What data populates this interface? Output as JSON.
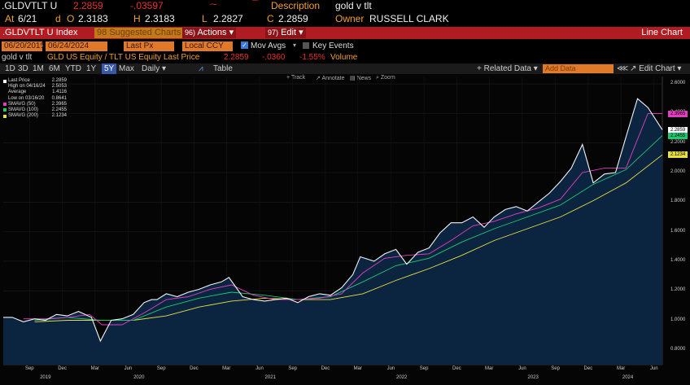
{
  "header": {
    "ticker": ".GLDVTLT U",
    "last_price": "2.2859",
    "change": "-.03597",
    "desc_label": "Description",
    "desc_value": "gold v tlt",
    "at_label": "At",
    "date": "6/21",
    "d_label": "d",
    "o_label": "O",
    "open": "2.3183",
    "h_label": "H",
    "high": "2.3183",
    "l_label": "L",
    "low": "2.2827",
    "c_label": "C",
    "close": "2.2859",
    "owner_label": "Owner",
    "owner": "RUSSELL CLARK"
  },
  "titlebar": {
    "index_label": ".GLDVTLT U Index",
    "suggested": "Suggested Charts",
    "suggested_num": "98",
    "actions_num": "96)",
    "actions": "Actions",
    "edit_num": "97)",
    "edit": "Edit",
    "right_title": "Line Chart"
  },
  "controls": {
    "start_date": "06/20/2019",
    "end_date": "06/24/2024",
    "field": "Last Px",
    "currency": "Local CCY",
    "mov_avgs": "Mov Avgs",
    "key_events": "Key Events"
  },
  "series_line": {
    "name": "gold v tlt",
    "formula": "GLD US Equity / TLT US Equity Last Price",
    "value": "2.2859",
    "change": "-.0360",
    "pct": "-1.55%",
    "volume": "Volume"
  },
  "toolbar": {
    "periods": [
      "1D",
      "3D",
      "1M",
      "6M",
      "YTD",
      "1Y",
      "5Y",
      "Max"
    ],
    "selected": "5Y",
    "daily": "Daily",
    "table": "Table",
    "related": "Related Data",
    "add_data": "Add Data",
    "edit_chart": "Edit Chart",
    "mini_tools": [
      "Track",
      "Annotate",
      "News",
      "Zoom"
    ]
  },
  "legend": [
    {
      "label": "Last Price",
      "value": "2.2859",
      "color": "#ffffff"
    },
    {
      "label": "High on 04/16/24",
      "value": "2.5053",
      "color": ""
    },
    {
      "label": "Average",
      "value": "1.4116",
      "color": ""
    },
    {
      "label": "Low on 03/16/20",
      "value": "0.8641",
      "color": ""
    },
    {
      "label": "SMAVG (50)",
      "value": "2.3965",
      "color": "#e040c0"
    },
    {
      "label": "SMAVG (100)",
      "value": "2.2455",
      "color": "#20c870"
    },
    {
      "label": "SMAVG (200)",
      "value": "2.1234",
      "color": "#e8e040"
    }
  ],
  "colors": {
    "area": "#0b2440",
    "price": "#f4f4f4",
    "sma50": "#e040c0",
    "sma100": "#20c870",
    "sma200": "#e8e040"
  },
  "chart_data": {
    "type": "area",
    "title": "gold v tlt",
    "ylim": [
      0.7,
      2.65
    ],
    "xlim": [
      "2019-06-20",
      "2024-06-24"
    ],
    "yticks": [
      "2.6000",
      "2.4000",
      "2.2000",
      "2.0000",
      "1.8000",
      "1.6000",
      "1.4000",
      "1.2000",
      "1.0000",
      "0.8000"
    ],
    "month_ticks": [
      {
        "label": "Sep",
        "date": "2019-09-01"
      },
      {
        "label": "Dec",
        "date": "2019-12-01"
      },
      {
        "label": "Mar",
        "date": "2020-03-01"
      },
      {
        "label": "Jun",
        "date": "2020-06-01"
      },
      {
        "label": "Sep",
        "date": "2020-09-01"
      },
      {
        "label": "Dec",
        "date": "2020-12-01"
      },
      {
        "label": "Mar",
        "date": "2021-03-01"
      },
      {
        "label": "Jun",
        "date": "2021-06-01"
      },
      {
        "label": "Sep",
        "date": "2021-09-01"
      },
      {
        "label": "Dec",
        "date": "2021-12-01"
      },
      {
        "label": "Mar",
        "date": "2022-03-01"
      },
      {
        "label": "Jun",
        "date": "2022-06-01"
      },
      {
        "label": "Sep",
        "date": "2022-09-01"
      },
      {
        "label": "Dec",
        "date": "2022-12-01"
      },
      {
        "label": "Mar",
        "date": "2023-03-01"
      },
      {
        "label": "Jun",
        "date": "2023-06-01"
      },
      {
        "label": "Sep",
        "date": "2023-09-01"
      },
      {
        "label": "Dec",
        "date": "2023-12-01"
      },
      {
        "label": "Mar",
        "date": "2024-03-01"
      },
      {
        "label": "Jun",
        "date": "2024-06-01"
      }
    ],
    "year_ticks": [
      {
        "label": "2019",
        "date": "2019-10-15"
      },
      {
        "label": "2020",
        "date": "2020-07-01"
      },
      {
        "label": "2021",
        "date": "2021-07-01"
      },
      {
        "label": "2022",
        "date": "2022-07-01"
      },
      {
        "label": "2023",
        "date": "2023-07-01"
      },
      {
        "label": "2024",
        "date": "2024-03-20"
      }
    ],
    "tags": [
      {
        "value": 2.3965,
        "label": "2.3965",
        "color": "#e040c0"
      },
      {
        "value": 2.2859,
        "label": "2.2859",
        "color": "#ffffff"
      },
      {
        "value": 2.2455,
        "label": "2.2455",
        "color": "#20c870"
      },
      {
        "value": 2.1234,
        "label": "2.1234",
        "color": "#e8e040"
      }
    ],
    "series": [
      {
        "name": "Last Price",
        "color": "#f4f4f4",
        "x": [
          "2019-06-20",
          "2019-07-15",
          "2019-08-15",
          "2019-09-15",
          "2019-10-15",
          "2019-11-15",
          "2019-12-15",
          "2020-01-15",
          "2020-02-20",
          "2020-03-16",
          "2020-04-15",
          "2020-05-15",
          "2020-06-15",
          "2020-07-15",
          "2020-08-05",
          "2020-08-20",
          "2020-09-15",
          "2020-10-15",
          "2020-11-15",
          "2020-12-15",
          "2021-01-15",
          "2021-02-15",
          "2021-03-08",
          "2021-04-15",
          "2021-05-15",
          "2021-06-15",
          "2021-07-15",
          "2021-08-15",
          "2021-09-15",
          "2021-10-15",
          "2021-11-15",
          "2021-12-15",
          "2022-01-15",
          "2022-02-15",
          "2022-03-08",
          "2022-04-15",
          "2022-05-15",
          "2022-06-15",
          "2022-07-15",
          "2022-08-15",
          "2022-09-15",
          "2022-10-15",
          "2022-11-15",
          "2022-12-15",
          "2023-01-15",
          "2023-02-15",
          "2023-03-15",
          "2023-04-15",
          "2023-05-15",
          "2023-06-15",
          "2023-07-15",
          "2023-08-15",
          "2023-09-15",
          "2023-10-15",
          "2023-11-15",
          "2023-12-15",
          "2024-01-15",
          "2024-02-15",
          "2024-03-15",
          "2024-04-16",
          "2024-05-15",
          "2024-06-24"
        ],
        "y": [
          1.02,
          1.02,
          0.99,
          1.01,
          1.0,
          1.04,
          1.03,
          1.06,
          1.02,
          0.86,
          1.0,
          1.01,
          1.04,
          1.12,
          1.14,
          1.14,
          1.18,
          1.16,
          1.19,
          1.21,
          1.24,
          1.26,
          1.29,
          1.16,
          1.14,
          1.13,
          1.14,
          1.15,
          1.12,
          1.16,
          1.18,
          1.17,
          1.22,
          1.31,
          1.43,
          1.4,
          1.45,
          1.48,
          1.38,
          1.46,
          1.49,
          1.59,
          1.66,
          1.66,
          1.7,
          1.63,
          1.7,
          1.75,
          1.77,
          1.74,
          1.8,
          1.86,
          1.94,
          2.03,
          2.19,
          1.93,
          1.99,
          2.0,
          2.24,
          2.5,
          2.44,
          2.29
        ]
      },
      {
        "name": "SMAVG (50)",
        "color": "#e040c0",
        "x": [
          "2019-08-15",
          "2019-10-15",
          "2019-12-15",
          "2020-02-15",
          "2020-03-20",
          "2020-05-15",
          "2020-07-15",
          "2020-09-15",
          "2020-11-15",
          "2021-01-15",
          "2021-03-15",
          "2021-05-15",
          "2021-07-15",
          "2021-09-15",
          "2021-11-15",
          "2022-01-15",
          "2022-03-15",
          "2022-05-15",
          "2022-07-15",
          "2022-09-15",
          "2022-11-15",
          "2023-01-15",
          "2023-03-15",
          "2023-05-15",
          "2023-07-15",
          "2023-09-15",
          "2023-11-15",
          "2024-01-15",
          "2024-03-15",
          "2024-05-15",
          "2024-06-24"
        ],
        "y": [
          1.01,
          1.01,
          1.02,
          1.04,
          0.97,
          0.97,
          1.05,
          1.14,
          1.16,
          1.21,
          1.24,
          1.17,
          1.14,
          1.14,
          1.15,
          1.18,
          1.32,
          1.42,
          1.44,
          1.45,
          1.54,
          1.64,
          1.67,
          1.72,
          1.76,
          1.82,
          2.0,
          2.03,
          2.03,
          2.4,
          2.4
        ]
      },
      {
        "name": "SMAVG (100)",
        "color": "#20c870",
        "x": [
          "2019-09-15",
          "2019-12-15",
          "2020-03-15",
          "2020-06-15",
          "2020-09-15",
          "2020-12-15",
          "2021-03-15",
          "2021-06-15",
          "2021-09-15",
          "2021-12-15",
          "2022-03-15",
          "2022-06-15",
          "2022-09-15",
          "2022-12-15",
          "2023-03-15",
          "2023-06-15",
          "2023-09-15",
          "2023-12-15",
          "2024-03-15",
          "2024-06-24"
        ],
        "y": [
          1.0,
          1.02,
          1.0,
          1.0,
          1.09,
          1.15,
          1.19,
          1.17,
          1.14,
          1.16,
          1.26,
          1.37,
          1.42,
          1.53,
          1.62,
          1.7,
          1.78,
          1.92,
          2.02,
          2.25
        ]
      },
      {
        "name": "SMAVG (200)",
        "color": "#e8e040",
        "x": [
          "2019-09-15",
          "2019-12-15",
          "2020-03-15",
          "2020-06-15",
          "2020-09-15",
          "2020-12-15",
          "2021-03-15",
          "2021-06-15",
          "2021-09-15",
          "2021-12-15",
          "2022-03-15",
          "2022-06-15",
          "2022-09-15",
          "2022-12-15",
          "2023-03-15",
          "2023-06-15",
          "2023-09-15",
          "2023-12-15",
          "2024-03-15",
          "2024-06-24"
        ],
        "y": [
          0.99,
          1.0,
          1.0,
          1.0,
          1.03,
          1.09,
          1.13,
          1.15,
          1.14,
          1.14,
          1.18,
          1.27,
          1.35,
          1.44,
          1.54,
          1.62,
          1.7,
          1.81,
          1.93,
          2.12
        ]
      }
    ]
  }
}
